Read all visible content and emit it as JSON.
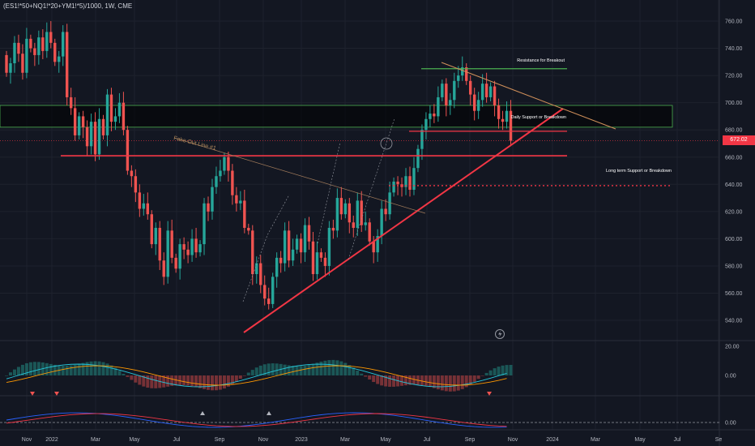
{
  "header": {
    "symbol": "(ES1!*50+NQ1!*20+YM1!*5)/1000, 1W, CME"
  },
  "colors": {
    "bg": "#131722",
    "up": "#26a69a",
    "down": "#ef5350",
    "grid": "#1e222d",
    "axis_text": "#b2b5be",
    "red_line": "#f23645",
    "orange_line": "#d1905a",
    "green_line": "#4caf50"
  },
  "annotations": {
    "resistance": "Resistance for Breakout",
    "daily": "Daily Support or Breakdown",
    "long_term": "Long term Support or Breakdown",
    "fake_out": "Fake Out Line #1"
  },
  "chart_data": [
    {
      "type": "candlestick",
      "title": "(ES1!*50+NQ1!*20+YM1!*5)/1000, 1W, CME",
      "x_ticks": [
        "Nov",
        "2022",
        "Mar",
        "May",
        "Jul",
        "Sep",
        "Nov",
        "2023",
        "Mar",
        "May",
        "Jul",
        "Sep",
        "Nov",
        "2024",
        "Mar",
        "May",
        "Jul",
        "Se"
      ],
      "y_ticks": [
        "760.00",
        "740.00",
        "720.00",
        "700.00",
        "680.00",
        "660.00",
        "640.00",
        "620.00",
        "600.00",
        "580.00",
        "560.00",
        "540.00"
      ],
      "ylim": [
        530,
        768
      ],
      "last_price": "672.02",
      "levels": [
        {
          "name": "resistance",
          "y": 725
        },
        {
          "name": "daily",
          "y": 679
        },
        {
          "name": "support",
          "y": 661
        },
        {
          "name": "long_term",
          "y": 639
        },
        {
          "name": "zone",
          "y_top": 698,
          "y_bottom": 682
        }
      ],
      "closes": [
        722,
        729,
        744,
        736,
        722,
        747,
        740,
        735,
        748,
        738,
        752,
        744,
        730,
        734,
        752,
        704,
        696,
        676,
        690,
        682,
        668,
        686,
        662,
        688,
        676,
        706,
        686,
        690,
        700,
        680,
        650,
        646,
        634,
        622,
        626,
        618,
        596,
        608,
        584,
        572,
        606,
        586,
        578,
        596,
        592,
        588,
        600,
        590,
        596,
        626,
        620,
        638,
        646,
        650,
        660,
        650,
        632,
        626,
        628,
        608,
        606,
        574,
        582,
        566,
        556,
        552,
        572,
        586,
        582,
        606,
        584,
        592,
        600,
        590,
        610,
        598,
        574,
        590,
        586,
        580,
        608,
        606,
        630,
        618,
        626,
        612,
        608,
        628,
        610,
        612,
        598,
        590,
        602,
        622,
        618,
        634,
        642,
        640,
        638,
        646,
        636,
        652,
        666,
        680,
        688,
        692,
        690,
        704,
        714,
        698,
        702,
        716,
        720,
        726,
        716,
        706,
        694,
        702,
        714,
        704,
        712,
        698,
        688,
        686,
        694,
        672
      ]
    },
    {
      "type": "histogram",
      "name": "oscillator 1",
      "y_ticks": [
        "20.00",
        "0.00"
      ],
      "signal_markers": [
        "down",
        "down",
        "down"
      ]
    },
    {
      "type": "line",
      "name": "oscillator 2",
      "y_ticks": [
        "0.00"
      ],
      "signal_markers": [
        "up",
        "up"
      ]
    }
  ]
}
